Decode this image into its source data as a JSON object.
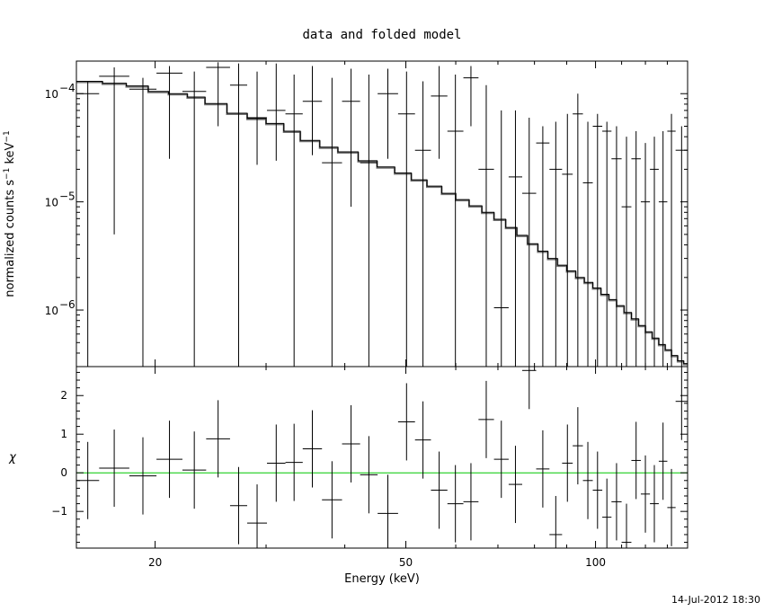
{
  "chart_data": [
    {
      "panel": "top",
      "type": "line",
      "title": "data and folded model",
      "ylabel": "normalized counts s",
      "ylabel_units": "keV",
      "yscale": "log",
      "xscale": "log",
      "xlim": [
        15,
        140
      ],
      "ylim": [
        3e-07,
        0.0002
      ],
      "ytick_base": "10",
      "ytick_exponents": [
        "−4",
        "−5",
        "−6"
      ],
      "ytick_values": [
        0.0001,
        1e-05,
        1e-06
      ],
      "grid": false,
      "series": [
        {
          "kind": "data_crosses",
          "points": [
            {
              "x0": 15.0,
              "x1": 16.3,
              "y": 0.0001,
              "ylo": 3e-07,
              "yhi": 0.00013
            },
            {
              "x0": 16.3,
              "x1": 18.2,
              "y": 0.000145,
              "ylo": 5e-06,
              "yhi": 0.000175
            },
            {
              "x0": 18.2,
              "x1": 20.1,
              "y": 0.00011,
              "ylo": 3e-07,
              "yhi": 0.00014
            },
            {
              "x0": 20.1,
              "x1": 22.1,
              "y": 0.000155,
              "ylo": 2.5e-05,
              "yhi": 0.00018
            },
            {
              "x0": 22.1,
              "x1": 24.1,
              "y": 0.000105,
              "ylo": 3e-07,
              "yhi": 0.00016
            },
            {
              "x0": 24.1,
              "x1": 26.3,
              "y": 0.000175,
              "ylo": 5e-05,
              "yhi": 0.000195
            },
            {
              "x0": 26.3,
              "x1": 28.0,
              "y": 0.00012,
              "ylo": 3e-07,
              "yhi": 0.00019
            },
            {
              "x0": 28.0,
              "x1": 30.1,
              "y": 6e-05,
              "ylo": 2.2e-05,
              "yhi": 0.00016
            },
            {
              "x0": 30.1,
              "x1": 32.2,
              "y": 7e-05,
              "ylo": 2.4e-05,
              "yhi": 0.00019
            },
            {
              "x0": 32.2,
              "x1": 34.3,
              "y": 6.5e-05,
              "ylo": 3e-07,
              "yhi": 0.00015
            },
            {
              "x0": 34.3,
              "x1": 36.8,
              "y": 8.5e-05,
              "ylo": 2.7e-05,
              "yhi": 0.00018
            },
            {
              "x0": 36.8,
              "x1": 39.6,
              "y": 2.3e-05,
              "ylo": 3e-07,
              "yhi": 0.00014
            },
            {
              "x0": 39.6,
              "x1": 42.3,
              "y": 8.5e-05,
              "ylo": 9e-06,
              "yhi": 0.00017
            },
            {
              "x0": 42.3,
              "x1": 45.1,
              "y": 2.3e-05,
              "ylo": 3e-07,
              "yhi": 0.00015
            },
            {
              "x0": 45.1,
              "x1": 48.6,
              "y": 0.0001,
              "ylo": 2.5e-05,
              "yhi": 0.00017
            },
            {
              "x0": 48.6,
              "x1": 51.7,
              "y": 6.5e-05,
              "ylo": 3e-07,
              "yhi": 0.00016
            },
            {
              "x0": 51.7,
              "x1": 54.8,
              "y": 3e-05,
              "ylo": 3e-07,
              "yhi": 0.00013
            },
            {
              "x0": 54.8,
              "x1": 58.2,
              "y": 9.5e-05,
              "ylo": 2.5e-05,
              "yhi": 0.00018
            },
            {
              "x0": 58.2,
              "x1": 61.7,
              "y": 4.5e-05,
              "ylo": 3e-07,
              "yhi": 0.00015
            },
            {
              "x0": 61.7,
              "x1": 65.2,
              "y": 0.00014,
              "ylo": 5e-05,
              "yhi": 0.00018
            },
            {
              "x0": 65.2,
              "x1": 69.0,
              "y": 2e-05,
              "ylo": 3e-07,
              "yhi": 0.00012
            },
            {
              "x0": 69.0,
              "x1": 72.8,
              "y": 1.05e-06,
              "ylo": 3e-07,
              "yhi": 7e-05
            },
            {
              "x0": 72.8,
              "x1": 76.5,
              "y": 1.7e-05,
              "ylo": 3e-07,
              "yhi": 7e-05
            },
            {
              "x0": 76.5,
              "x1": 80.5,
              "y": 1.2e-05,
              "ylo": 3e-07,
              "yhi": 6e-05
            },
            {
              "x0": 80.5,
              "x1": 84.5,
              "y": 3.5e-05,
              "ylo": 3e-07,
              "yhi": 5e-05
            },
            {
              "x0": 84.5,
              "x1": 88.5,
              "y": 2e-05,
              "ylo": 3e-07,
              "yhi": 5.5e-05
            },
            {
              "x0": 88.5,
              "x1": 92.0,
              "y": 1.8e-05,
              "ylo": 3e-07,
              "yhi": 6.5e-05
            },
            {
              "x0": 92.0,
              "x1": 95.5,
              "y": 6.5e-05,
              "ylo": 3e-07,
              "yhi": 0.0001
            },
            {
              "x0": 95.5,
              "x1": 99.0,
              "y": 1.5e-05,
              "ylo": 3e-07,
              "yhi": 5.5e-05
            },
            {
              "x0": 99.0,
              "x1": 102.5,
              "y": 5e-05,
              "ylo": 3e-07,
              "yhi": 6.5e-05
            },
            {
              "x0": 102.5,
              "x1": 106.0,
              "y": 4.5e-05,
              "ylo": 3e-07,
              "yhi": 5.5e-05
            },
            {
              "x0": 106.0,
              "x1": 110.0,
              "y": 2.5e-05,
              "ylo": 3e-07,
              "yhi": 5e-05
            },
            {
              "x0": 110.0,
              "x1": 114.0,
              "y": 9e-06,
              "ylo": 3e-07,
              "yhi": 4e-05
            },
            {
              "x0": 114.0,
              "x1": 118.0,
              "y": 2.5e-05,
              "ylo": 3e-07,
              "yhi": 4.5e-05
            },
            {
              "x0": 118.0,
              "x1": 122.0,
              "y": 1e-05,
              "ylo": 3e-07,
              "yhi": 3.5e-05
            },
            {
              "x0": 122.0,
              "x1": 126.0,
              "y": 2e-05,
              "ylo": 3e-07,
              "yhi": 4e-05
            },
            {
              "x0": 126.0,
              "x1": 130.0,
              "y": 1e-05,
              "ylo": 3e-07,
              "yhi": 4.5e-05
            },
            {
              "x0": 130.0,
              "x1": 134.0,
              "y": 4.5e-05,
              "ylo": 3e-07,
              "yhi": 6.5e-05
            },
            {
              "x0": 134.0,
              "x1": 140.0,
              "y": 3e-05,
              "ylo": 3e-07,
              "yhi": 5e-05
            }
          ]
        },
        {
          "kind": "model_step",
          "x": [
            15.0,
            16.5,
            18.0,
            19.5,
            21.0,
            22.5,
            24.0,
            26.0,
            28.0,
            30.0,
            32.0,
            34.0,
            36.5,
            39.0,
            42.0,
            45.0,
            48.0,
            51.0,
            54.0,
            57.0,
            60.0,
            63.0,
            66.0,
            69.0,
            72.0,
            75.0,
            78.0,
            81.0,
            84.0,
            87.0,
            90.0,
            93.0,
            96.0,
            99.0,
            102.0,
            105.0,
            108.0,
            111.0,
            114.0,
            117.0,
            120.0,
            123.0,
            126.0,
            129.0,
            132.0,
            135.0,
            138.0,
            140.0
          ],
          "y": [
            0.00013,
            0.000125,
            0.000118,
            0.000105,
            0.0001,
            9.3e-05,
            8.1e-05,
            6.6e-05,
            5.9e-05,
            5.3e-05,
            4.5e-05,
            3.7e-05,
            3.2e-05,
            2.9e-05,
            2.4e-05,
            2.1e-05,
            1.85e-05,
            1.6e-05,
            1.4e-05,
            1.2e-05,
            1.05e-05,
            9.2e-06,
            8e-06,
            6.9e-06,
            5.8e-06,
            4.9e-06,
            4.1e-06,
            3.5e-06,
            3e-06,
            2.6e-06,
            2.3e-06,
            2e-06,
            1.8e-06,
            1.6e-06,
            1.4e-06,
            1.25e-06,
            1.1e-06,
            9.5e-07,
            8.3e-07,
            7.2e-07,
            6.3e-07,
            5.5e-07,
            4.8e-07,
            4.3e-07,
            3.8e-07,
            3.4e-07,
            3.2e-07,
            3.1e-07
          ]
        }
      ]
    },
    {
      "panel": "bottom",
      "type": "scatter",
      "xlabel": "Energy (keV)",
      "ylabel": "χ",
      "xscale": "log",
      "xlim": [
        15,
        140
      ],
      "ylim": [
        -1.95,
        2.75
      ],
      "xticks": [
        20,
        50,
        100
      ],
      "yticks": [
        -1,
        0,
        1,
        2
      ],
      "grid": false,
      "zero_line_color": "#00c800",
      "series": [
        {
          "kind": "residual_crosses",
          "points": [
            {
              "x0": 15.0,
              "x1": 16.3,
              "y": -0.2,
              "err": 1.0
            },
            {
              "x0": 16.3,
              "x1": 18.2,
              "y": 0.12,
              "err": 1.0
            },
            {
              "x0": 18.2,
              "x1": 20.1,
              "y": -0.08,
              "err": 1.0
            },
            {
              "x0": 20.1,
              "x1": 22.1,
              "y": 0.35,
              "err": 1.0
            },
            {
              "x0": 22.1,
              "x1": 24.1,
              "y": 0.07,
              "err": 1.0
            },
            {
              "x0": 24.1,
              "x1": 26.3,
              "y": 0.88,
              "err": 1.0
            },
            {
              "x0": 26.3,
              "x1": 28.0,
              "y": -0.85,
              "err": 1.0
            },
            {
              "x0": 28.0,
              "x1": 30.1,
              "y": -1.3,
              "err": 1.0
            },
            {
              "x0": 30.1,
              "x1": 32.2,
              "y": 0.25,
              "err": 1.0
            },
            {
              "x0": 32.2,
              "x1": 34.3,
              "y": 0.27,
              "err": 1.0
            },
            {
              "x0": 34.3,
              "x1": 36.8,
              "y": 0.62,
              "err": 1.0
            },
            {
              "x0": 36.8,
              "x1": 39.6,
              "y": -0.7,
              "err": 1.0
            },
            {
              "x0": 39.6,
              "x1": 42.3,
              "y": 0.75,
              "err": 1.0
            },
            {
              "x0": 42.3,
              "x1": 45.1,
              "y": -0.05,
              "err": 1.0
            },
            {
              "x0": 45.1,
              "x1": 48.6,
              "y": -1.05,
              "err": 1.0
            },
            {
              "x0": 48.6,
              "x1": 51.7,
              "y": 1.32,
              "err": 1.0
            },
            {
              "x0": 51.7,
              "x1": 54.8,
              "y": 0.85,
              "err": 1.0
            },
            {
              "x0": 54.8,
              "x1": 58.2,
              "y": -0.45,
              "err": 1.0
            },
            {
              "x0": 58.2,
              "x1": 61.7,
              "y": -0.8,
              "err": 1.0
            },
            {
              "x0": 61.7,
              "x1": 65.2,
              "y": -0.75,
              "err": 1.0
            },
            {
              "x0": 65.2,
              "x1": 69.0,
              "y": 1.38,
              "err": 1.0
            },
            {
              "x0": 69.0,
              "x1": 72.8,
              "y": 0.35,
              "err": 1.0
            },
            {
              "x0": 72.8,
              "x1": 76.5,
              "y": -0.3,
              "err": 1.0
            },
            {
              "x0": 76.5,
              "x1": 80.5,
              "y": 2.65,
              "err": 1.0
            },
            {
              "x0": 80.5,
              "x1": 84.5,
              "y": 0.1,
              "err": 1.0
            },
            {
              "x0": 84.5,
              "x1": 88.5,
              "y": -1.6,
              "err": 1.0
            },
            {
              "x0": 88.5,
              "x1": 92.0,
              "y": 0.25,
              "err": 1.0
            },
            {
              "x0": 92.0,
              "x1": 95.5,
              "y": 0.7,
              "err": 1.0
            },
            {
              "x0": 95.5,
              "x1": 99.0,
              "y": -0.2,
              "err": 1.0
            },
            {
              "x0": 99.0,
              "x1": 102.5,
              "y": -0.45,
              "err": 1.0
            },
            {
              "x0": 102.5,
              "x1": 106.0,
              "y": -1.15,
              "err": 1.0
            },
            {
              "x0": 106.0,
              "x1": 110.0,
              "y": -0.75,
              "err": 1.0
            },
            {
              "x0": 110.0,
              "x1": 114.0,
              "y": -1.8,
              "err": 1.0
            },
            {
              "x0": 114.0,
              "x1": 118.0,
              "y": 0.32,
              "err": 1.0
            },
            {
              "x0": 118.0,
              "x1": 122.0,
              "y": -0.55,
              "err": 1.0
            },
            {
              "x0": 122.0,
              "x1": 126.0,
              "y": -0.8,
              "err": 1.0
            },
            {
              "x0": 126.0,
              "x1": 130.0,
              "y": 0.3,
              "err": 1.0
            },
            {
              "x0": 130.0,
              "x1": 134.0,
              "y": -0.9,
              "err": 1.0
            },
            {
              "x0": 134.0,
              "x1": 140.0,
              "y": 1.85,
              "err": 1.0
            }
          ]
        }
      ]
    }
  ],
  "timestamp": "14-Jul-2012 18:30"
}
